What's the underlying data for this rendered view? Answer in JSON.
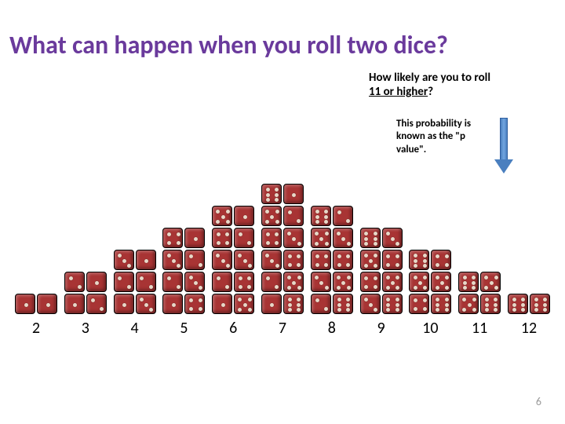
{
  "title": "What can happen when you roll two dice?",
  "subtitle_prefix": "How likely are you to roll ",
  "subtitle_underlined": "11 or higher",
  "subtitle_suffix": "?",
  "annotation": "This probability is  known as the \"p value\".",
  "page_number": "6",
  "colors": {
    "title": "#6a3a9c",
    "die_fill": "#a83434",
    "die_border": "#000000",
    "pip": "#e8d8c8",
    "arrow_fill": "#4a7fbf",
    "arrow_border": "#2f5fa0",
    "background": "#ffffff",
    "page_number": "#9a9a9a"
  },
  "chart": {
    "type": "bar",
    "sums": [
      2,
      3,
      4,
      5,
      6,
      7,
      8,
      9,
      10,
      11,
      12
    ],
    "combinations": [
      [
        [
          1,
          1
        ]
      ],
      [
        [
          1,
          2
        ],
        [
          2,
          1
        ]
      ],
      [
        [
          1,
          3
        ],
        [
          2,
          2
        ],
        [
          3,
          1
        ]
      ],
      [
        [
          1,
          4
        ],
        [
          2,
          3
        ],
        [
          3,
          2
        ],
        [
          4,
          1
        ]
      ],
      [
        [
          1,
          5
        ],
        [
          2,
          4
        ],
        [
          3,
          3
        ],
        [
          4,
          2
        ],
        [
          5,
          1
        ]
      ],
      [
        [
          1,
          6
        ],
        [
          2,
          5
        ],
        [
          3,
          4
        ],
        [
          4,
          3
        ],
        [
          5,
          2
        ],
        [
          6,
          1
        ]
      ],
      [
        [
          2,
          6
        ],
        [
          3,
          5
        ],
        [
          4,
          4
        ],
        [
          5,
          3
        ],
        [
          6,
          2
        ]
      ],
      [
        [
          3,
          6
        ],
        [
          4,
          5
        ],
        [
          5,
          4
        ],
        [
          6,
          3
        ]
      ],
      [
        [
          4,
          6
        ],
        [
          5,
          5
        ],
        [
          6,
          4
        ]
      ],
      [
        [
          5,
          6
        ],
        [
          6,
          5
        ]
      ],
      [
        [
          6,
          6
        ]
      ]
    ],
    "die_size": 26,
    "die_radius": 4,
    "pip_size": 5
  }
}
